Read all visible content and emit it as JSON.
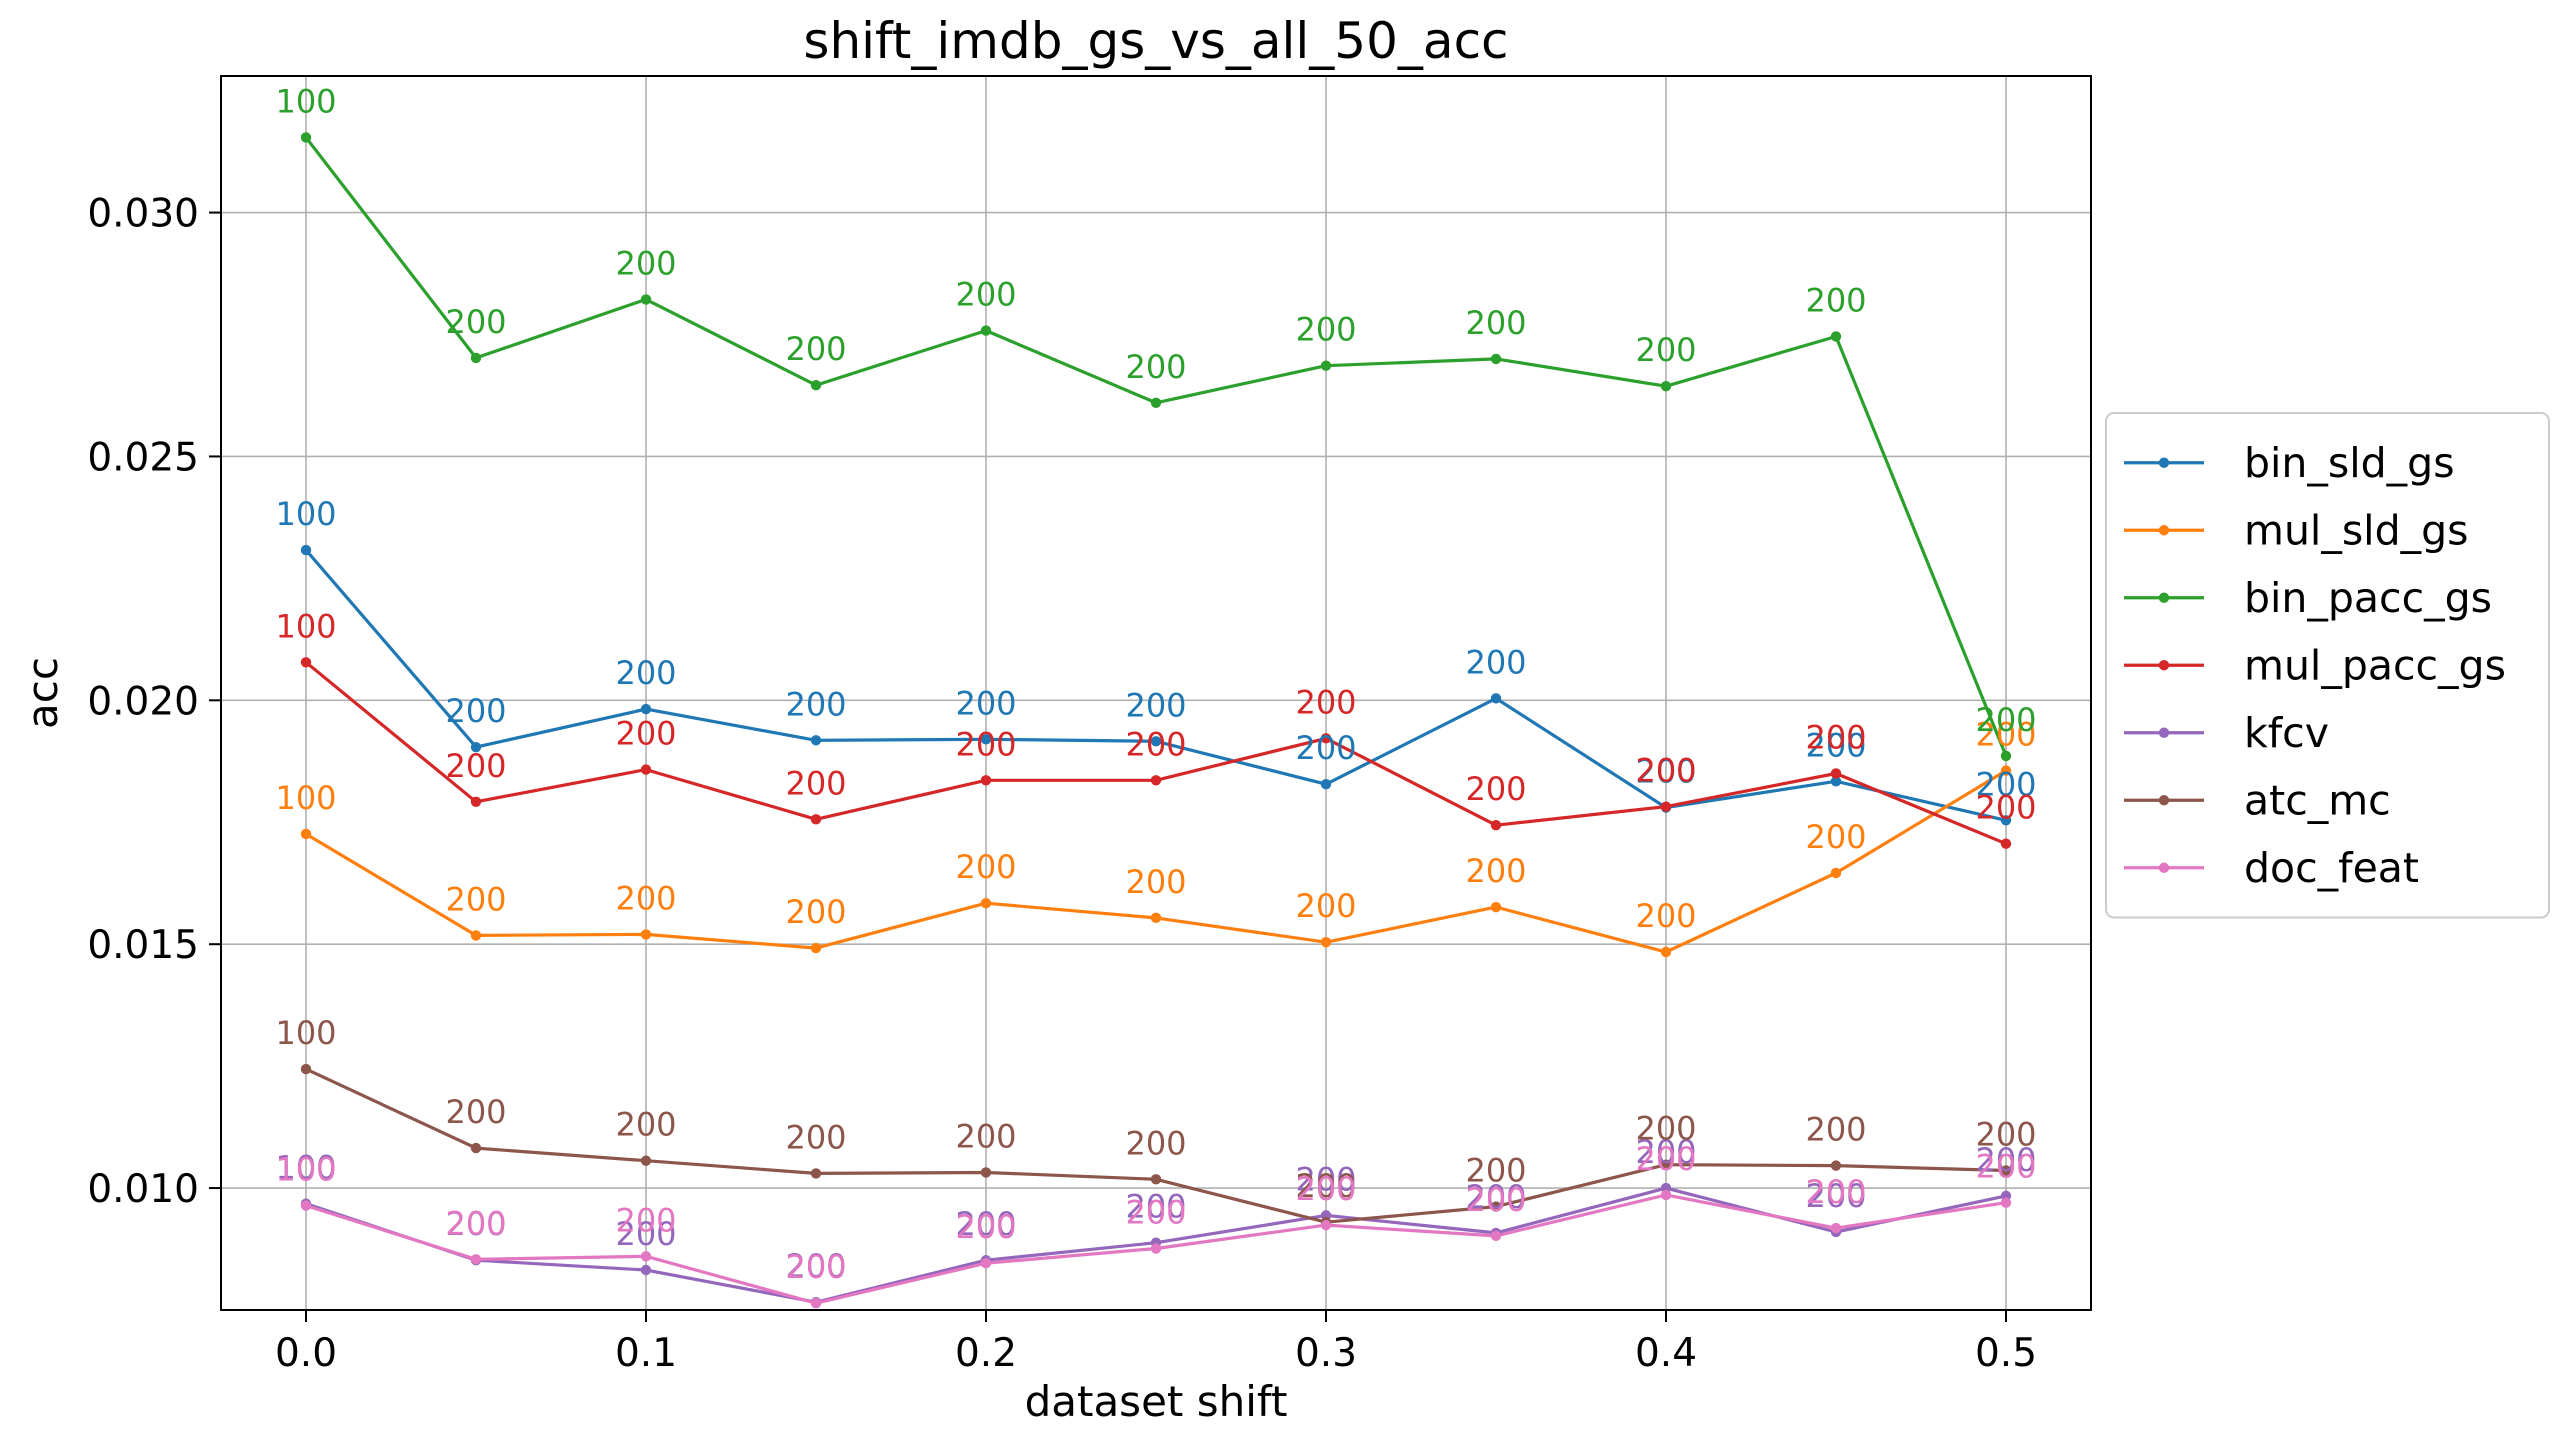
{
  "chart_data": {
    "type": "line",
    "title": "shift_imdb_gs_vs_all_50_acc",
    "xlabel": "dataset shift",
    "ylabel": "acc",
    "x": [
      0.0,
      0.05,
      0.1,
      0.15,
      0.2,
      0.25,
      0.3,
      0.35,
      0.4,
      0.45,
      0.5
    ],
    "xticks": [
      0.0,
      0.1,
      0.2,
      0.3,
      0.4,
      0.5
    ],
    "xtick_labels": [
      "0.0",
      "0.1",
      "0.2",
      "0.3",
      "0.4",
      "0.5"
    ],
    "yticks": [
      0.01,
      0.015,
      0.02,
      0.025,
      0.03
    ],
    "ytick_labels": [
      "0.010",
      "0.015",
      "0.020",
      "0.025",
      "0.030"
    ],
    "xlim": [
      -0.025,
      0.525
    ],
    "ylim": [
      0.0075,
      0.0328
    ],
    "grid": true,
    "legend_position": "right-outside",
    "point_labels": [
      "100",
      "200",
      "200",
      "200",
      "200",
      "200",
      "200",
      "200",
      "200",
      "200",
      "200"
    ],
    "series": [
      {
        "name": "bin_sld_gs",
        "color": "#1f77b4",
        "values": [
          0.02308,
          0.01904,
          0.01982,
          0.01918,
          0.0192,
          0.01916,
          0.01828,
          0.02004,
          0.0178,
          0.01834,
          0.01754
        ]
      },
      {
        "name": "mul_sld_gs",
        "color": "#ff7f0e",
        "values": [
          0.01726,
          0.01518,
          0.0152,
          0.01492,
          0.01584,
          0.01554,
          0.01504,
          0.01576,
          0.01484,
          0.01646,
          0.01856
        ]
      },
      {
        "name": "bin_pacc_gs",
        "color": "#2ca02c",
        "values": [
          0.03154,
          0.02702,
          0.02822,
          0.02646,
          0.02758,
          0.0261,
          0.02686,
          0.027,
          0.02644,
          0.02746,
          0.01886
        ]
      },
      {
        "name": "mul_pacc_gs",
        "color": "#d62728",
        "values": [
          0.02078,
          0.01792,
          0.01858,
          0.01756,
          0.01836,
          0.01836,
          0.01922,
          0.01744,
          0.01782,
          0.0185,
          0.01706
        ]
      },
      {
        "name": "kfcv",
        "color": "#9467bd",
        "values": [
          0.00968,
          0.00852,
          0.00832,
          0.00766,
          0.00852,
          0.00888,
          0.00944,
          0.00908,
          0.01,
          0.0091,
          0.00984
        ]
      },
      {
        "name": "atc_mc",
        "color": "#8c564b",
        "values": [
          0.01244,
          0.01082,
          0.01056,
          0.0103,
          0.01032,
          0.01018,
          0.0093,
          0.00962,
          0.01048,
          0.01046,
          0.01036
        ]
      },
      {
        "name": "doc_feat",
        "color": "#e377c2",
        "values": [
          0.00964,
          0.00854,
          0.0086,
          0.00764,
          0.00846,
          0.00876,
          0.00924,
          0.00902,
          0.00986,
          0.00918,
          0.0097
        ]
      }
    ]
  }
}
